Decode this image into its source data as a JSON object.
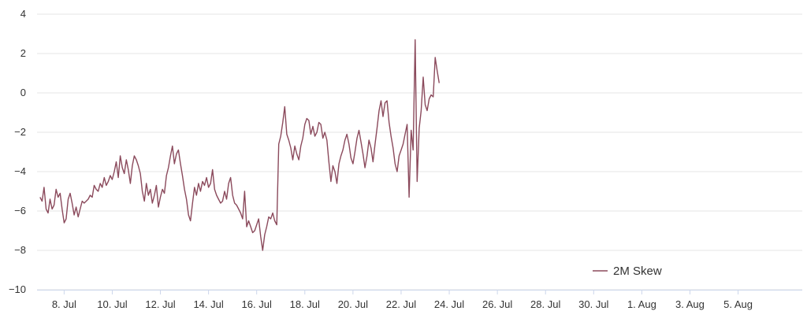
{
  "chart_data": {
    "type": "line",
    "title": "",
    "xlabel": "",
    "ylabel": "",
    "x_tick_labels": [
      "8. Jul",
      "10. Jul",
      "12. Jul",
      "14. Jul",
      "16. Jul",
      "18. Jul",
      "20. Jul",
      "22. Jul",
      "24. Jul",
      "26. Jul",
      "28. Jul",
      "30. Jul",
      "1. Aug",
      "3. Aug",
      "5. Aug"
    ],
    "y_ticks": [
      4,
      2,
      0,
      -2,
      -4,
      -6,
      -8,
      -10
    ],
    "ylim": [
      -10,
      4
    ],
    "xlim_days": [
      "2024-07-06T21:00",
      "2024-08-07T16:00"
    ],
    "grid": "horizontal",
    "legend_position": "bottom-right",
    "series": [
      {
        "name": "2M Skew",
        "color": "#8b4a5c",
        "x_start": "2024-07-07",
        "x_step_hours": 2,
        "values": [
          -5.3,
          -5.5,
          -4.8,
          -5.9,
          -6.1,
          -5.4,
          -5.9,
          -5.7,
          -4.9,
          -5.3,
          -5.1,
          -5.9,
          -6.6,
          -6.4,
          -5.4,
          -5.1,
          -5.6,
          -6.2,
          -5.8,
          -6.3,
          -5.9,
          -5.5,
          -5.6,
          -5.5,
          -5.4,
          -5.2,
          -5.3,
          -4.7,
          -4.9,
          -5.0,
          -4.6,
          -4.8,
          -4.3,
          -4.7,
          -4.5,
          -4.2,
          -4.4,
          -4.0,
          -3.5,
          -4.3,
          -3.2,
          -3.8,
          -4.1,
          -3.4,
          -3.9,
          -4.6,
          -3.7,
          -3.2,
          -3.4,
          -3.7,
          -4.1,
          -5.0,
          -5.5,
          -4.6,
          -5.2,
          -4.9,
          -5.6,
          -5.2,
          -4.7,
          -5.8,
          -5.3,
          -4.9,
          -5.1,
          -4.2,
          -3.8,
          -3.2,
          -2.7,
          -3.6,
          -3.1,
          -2.9,
          -3.6,
          -4.2,
          -4.9,
          -5.4,
          -6.2,
          -6.5,
          -5.6,
          -4.8,
          -5.2,
          -4.6,
          -5.0,
          -4.5,
          -4.7,
          -4.3,
          -4.8,
          -4.6,
          -3.9,
          -4.9,
          -5.2,
          -5.4,
          -5.6,
          -5.5,
          -5.0,
          -5.4,
          -4.6,
          -4.3,
          -5.2,
          -5.6,
          -5.7,
          -5.9,
          -6.1,
          -6.4,
          -5.0,
          -6.8,
          -6.5,
          -6.8,
          -7.1,
          -7.0,
          -6.7,
          -6.4,
          -7.3,
          -8.0,
          -7.2,
          -6.8,
          -6.3,
          -6.4,
          -6.1,
          -6.5,
          -6.7,
          -2.6,
          -2.2,
          -1.5,
          -0.7,
          -2.1,
          -2.4,
          -2.8,
          -3.4,
          -2.7,
          -3.1,
          -3.4,
          -2.7,
          -2.3,
          -1.6,
          -1.3,
          -1.4,
          -2.1,
          -1.7,
          -2.2,
          -2.0,
          -1.5,
          -1.6,
          -2.3,
          -2.0,
          -2.4,
          -3.5,
          -4.5,
          -3.7,
          -4.0,
          -4.6,
          -3.6,
          -3.2,
          -2.9,
          -2.4,
          -2.1,
          -2.6,
          -3.3,
          -3.6,
          -3.0,
          -2.3,
          -1.9,
          -2.5,
          -3.1,
          -3.8,
          -3.2,
          -2.4,
          -2.8,
          -3.5,
          -2.6,
          -1.8,
          -0.9,
          -0.4,
          -1.2,
          -0.5,
          -0.4,
          -1.5,
          -2.2,
          -2.8,
          -3.6,
          -4.0,
          -3.2,
          -2.9,
          -2.6,
          -2.1,
          -1.6,
          -5.3,
          -1.9,
          -2.9,
          2.7,
          -4.5,
          -1.8,
          -0.9,
          0.8,
          -0.6,
          -0.9,
          -0.3,
          -0.1,
          -0.2,
          1.8,
          1.1,
          0.5
        ]
      }
    ]
  }
}
